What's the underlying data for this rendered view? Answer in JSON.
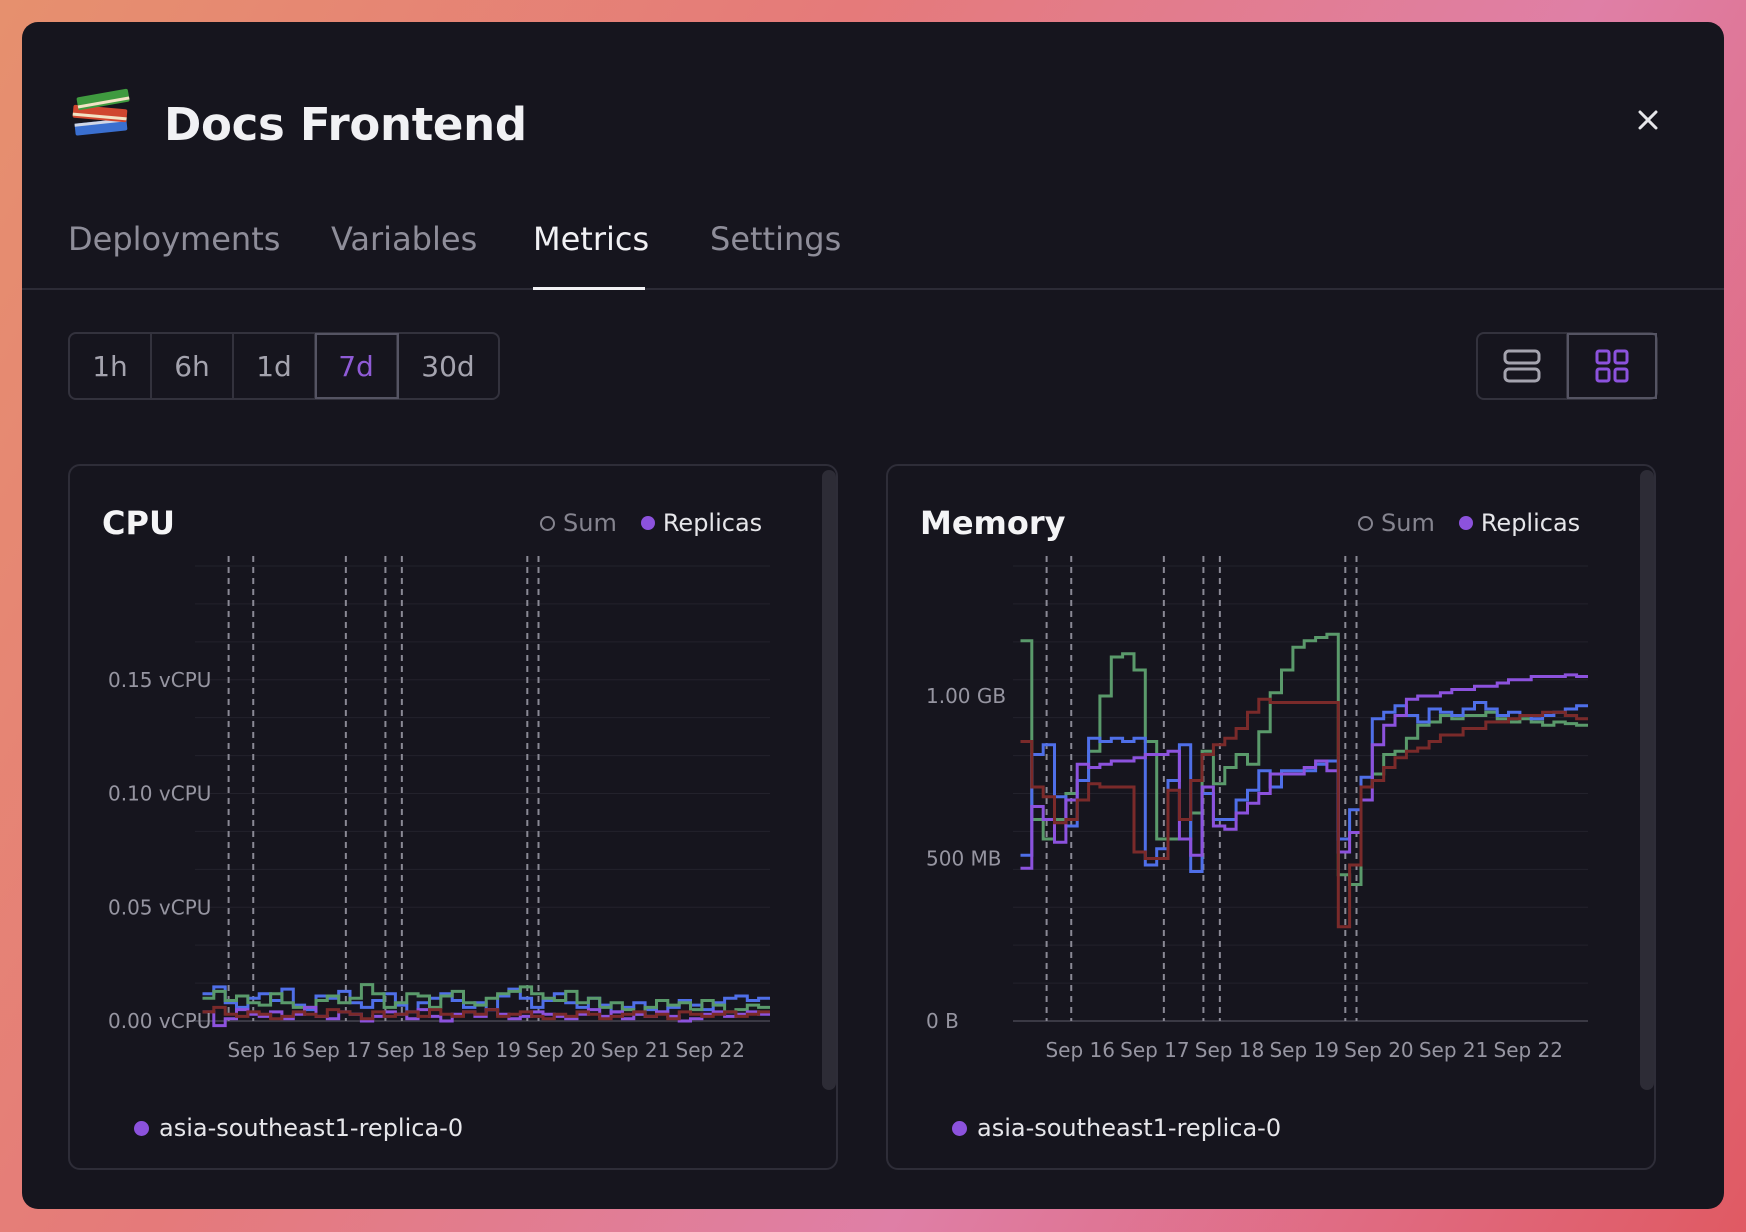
{
  "service": {
    "title": "Docs Frontend",
    "icon": "books-icon"
  },
  "tabs": [
    {
      "label": "Deployments"
    },
    {
      "label": "Variables"
    },
    {
      "label": "Metrics",
      "active": true
    },
    {
      "label": "Settings"
    }
  ],
  "time_ranges": [
    "1h",
    "6h",
    "1d",
    "7d",
    "30d"
  ],
  "selected_range": "7d",
  "view_modes": [
    {
      "icon": "list-layout-icon",
      "selected": false
    },
    {
      "icon": "grid-layout-icon",
      "selected": true
    }
  ],
  "legend": {
    "sum_label": "Sum",
    "replicas_label": "Replicas"
  },
  "replica_label": "asia-southeast1-replica-0",
  "colors": {
    "accent": "#8c52dd",
    "blue": "#4f6fe8",
    "green": "#5a9a6b",
    "red": "#7a2a2a",
    "purple": "#8c52dd"
  },
  "chart_data": [
    {
      "type": "line",
      "title": "CPU",
      "x_ticks": [
        "Sep 16",
        "Sep 17",
        "Sep 18",
        "Sep 19",
        "Sep 20",
        "Sep 21",
        "Sep 22"
      ],
      "y_ticks": [
        "0.15 vCPU",
        "0.10 vCPU",
        "0.05 vCPU",
        "0.00 vCPU"
      ],
      "y_tick_values": [
        0.15,
        0.1,
        0.05,
        0.0
      ],
      "ylim": [
        0,
        0.2
      ],
      "step": true,
      "deploy_markers": [
        15.55,
        15.88,
        17.12,
        17.65,
        17.87,
        19.55,
        19.7
      ],
      "series": [
        {
          "color": "#4f6fe8",
          "values": [
            0.012,
            0.015,
            0.008,
            0.006,
            0.01,
            0.012,
            0.009,
            0.014,
            0.007,
            0.005,
            0.011,
            0.01,
            0.013,
            0.008,
            0.006,
            0.009,
            0.012,
            0.007,
            0.004,
            0.008,
            0.01,
            0.012,
            0.009,
            0.006,
            0.008,
            0.005,
            0.011,
            0.014,
            0.01,
            0.006,
            0.009,
            0.012,
            0.008,
            0.006,
            0.01,
            0.007,
            0.004,
            0.006,
            0.008,
            0.005,
            0.004,
            0.006,
            0.009,
            0.007,
            0.005,
            0.008,
            0.01,
            0.011,
            0.009,
            0.01
          ]
        },
        {
          "color": "#5a9a6b",
          "values": [
            0.01,
            0.013,
            0.009,
            0.011,
            0.008,
            0.007,
            0.012,
            0.008,
            0.006,
            0.006,
            0.009,
            0.011,
            0.008,
            0.01,
            0.016,
            0.012,
            0.006,
            0.008,
            0.012,
            0.011,
            0.006,
            0.011,
            0.013,
            0.008,
            0.007,
            0.01,
            0.012,
            0.013,
            0.015,
            0.012,
            0.01,
            0.009,
            0.013,
            0.008,
            0.01,
            0.006,
            0.008,
            0.005,
            0.003,
            0.006,
            0.009,
            0.007,
            0.008,
            0.005,
            0.009,
            0.007,
            0.004,
            0.005,
            0.007,
            0.006
          ]
        },
        {
          "color": "#8c52dd",
          "values": [
            0.004,
            -0.002,
            0.001,
            0.005,
            0.003,
            0.002,
            0.004,
            0.001,
            0.003,
            0.006,
            0.002,
            0.001,
            0.004,
            0.003,
            0.0,
            0.002,
            0.004,
            0.003,
            0.001,
            0.005,
            0.002,
            0.0,
            0.003,
            0.004,
            0.002,
            0.005,
            0.003,
            0.001,
            0.002,
            0.004,
            0.003,
            0.002,
            0.001,
            0.003,
            0.005,
            0.002,
            0.004,
            0.001,
            0.003,
            0.002,
            0.004,
            0.002,
            0.0,
            0.001,
            0.003,
            0.004,
            0.002,
            0.003,
            0.004,
            0.003
          ]
        },
        {
          "color": "#7a2a2a",
          "values": [
            0.004,
            0.006,
            0.003,
            0.002,
            0.004,
            0.003,
            0.001,
            0.002,
            0.004,
            0.003,
            0.002,
            0.005,
            0.004,
            0.003,
            0.001,
            0.004,
            0.002,
            0.003,
            0.004,
            0.002,
            0.005,
            0.003,
            0.002,
            0.004,
            0.003,
            0.005,
            0.002,
            0.003,
            0.004,
            0.002,
            0.001,
            0.003,
            0.002,
            0.004,
            0.003,
            0.001,
            0.002,
            0.003,
            0.004,
            0.002,
            0.003,
            0.001,
            0.004,
            0.003,
            0.002,
            0.003,
            0.004,
            0.002,
            0.003,
            0.004
          ]
        }
      ]
    },
    {
      "type": "line",
      "title": "Memory",
      "x_ticks": [
        "Sep 16",
        "Sep 17",
        "Sep 18",
        "Sep 19",
        "Sep 20",
        "Sep 21",
        "Sep 22"
      ],
      "y_ticks": [
        "1.00 GB",
        "500 MB",
        "0 B"
      ],
      "y_tick_values": [
        1000,
        500,
        0
      ],
      "ylim": [
        0,
        1400
      ],
      "step": true,
      "deploy_markers": [
        15.55,
        15.88,
        17.12,
        17.65,
        17.87,
        19.55,
        19.7
      ],
      "series": [
        {
          "color": "#5a9a6b",
          "values": [
            1170,
            620,
            560,
            620,
            700,
            740,
            830,
            1000,
            1120,
            1130,
            1080,
            860,
            560,
            560,
            560,
            640,
            830,
            730,
            780,
            820,
            790,
            890,
            1010,
            1080,
            1150,
            1170,
            1180,
            1190,
            450,
            420,
            720,
            760,
            820,
            830,
            870,
            910,
            920,
            940,
            930,
            940,
            940,
            950,
            930,
            920,
            930,
            920,
            910,
            920,
            915,
            910
          ]
        },
        {
          "color": "#4f6fe8",
          "values": [
            510,
            820,
            850,
            690,
            600,
            740,
            870,
            860,
            870,
            860,
            870,
            480,
            530,
            740,
            850,
            460,
            700,
            620,
            620,
            680,
            710,
            770,
            720,
            770,
            770,
            770,
            790,
            800,
            560,
            650,
            750,
            930,
            950,
            970,
            940,
            920,
            960,
            950,
            940,
            960,
            980,
            960,
            940,
            950,
            940,
            930,
            940,
            950,
            960,
            970
          ]
        },
        {
          "color": "#8c52dd",
          "values": [
            470,
            660,
            620,
            550,
            680,
            790,
            780,
            790,
            800,
            800,
            810,
            820,
            820,
            830,
            560,
            510,
            720,
            600,
            590,
            640,
            670,
            700,
            760,
            760,
            760,
            780,
            800,
            770,
            520,
            580,
            680,
            850,
            910,
            940,
            990,
            1000,
            1000,
            1010,
            1020,
            1020,
            1030,
            1030,
            1040,
            1050,
            1050,
            1060,
            1060,
            1060,
            1065,
            1060
          ]
        },
        {
          "color": "#7a2a2a",
          "values": [
            860,
            720,
            690,
            610,
            620,
            680,
            730,
            720,
            720,
            720,
            520,
            500,
            500,
            710,
            620,
            740,
            820,
            850,
            870,
            900,
            950,
            990,
            980,
            980,
            980,
            980,
            980,
            980,
            290,
            480,
            720,
            740,
            780,
            810,
            830,
            840,
            860,
            880,
            880,
            900,
            900,
            920,
            920,
            930,
            940,
            940,
            950,
            950,
            940,
            930
          ]
        }
      ]
    }
  ]
}
